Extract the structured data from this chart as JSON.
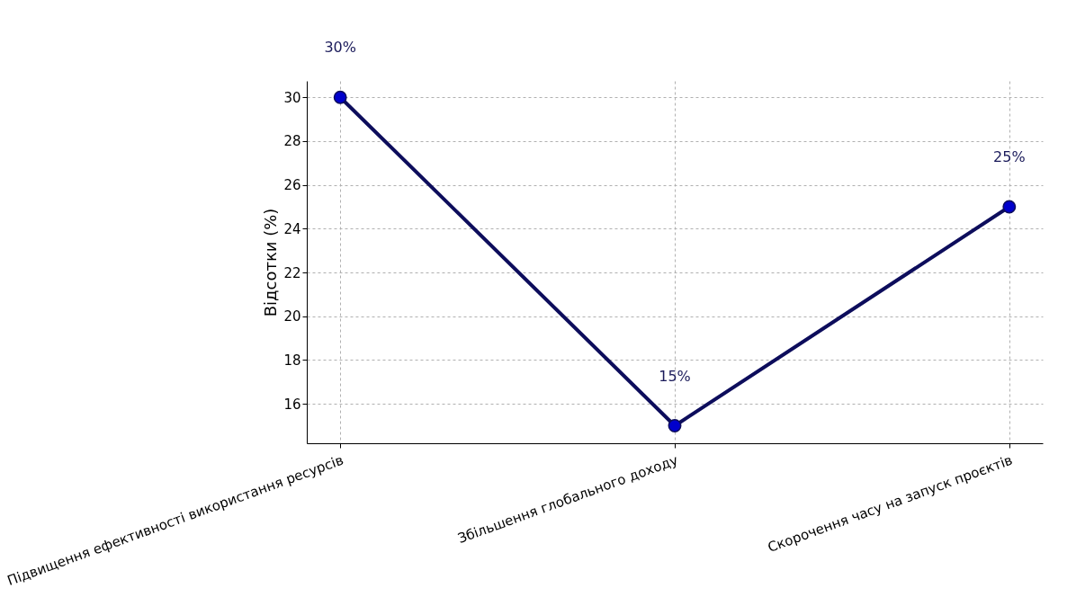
{
  "chart_data": {
    "type": "line",
    "ylabel": "Відсотки (%)",
    "categories": [
      "Підвищення ефективності використання ресурсів",
      "Збільшення глобального доходу",
      "Скорочення часу на запуск проєктів"
    ],
    "series": [
      {
        "color": "#0d0d5c",
        "values": [
          30,
          15,
          25
        ],
        "value_labels": [
          "30%",
          "15%",
          "25%"
        ]
      }
    ],
    "ylim": [
      14.2,
      30.75
    ],
    "yticks": [
      16,
      18,
      20,
      22,
      24,
      26,
      28,
      30
    ],
    "grid": true,
    "marker": "circle",
    "line_style": "solid"
  }
}
